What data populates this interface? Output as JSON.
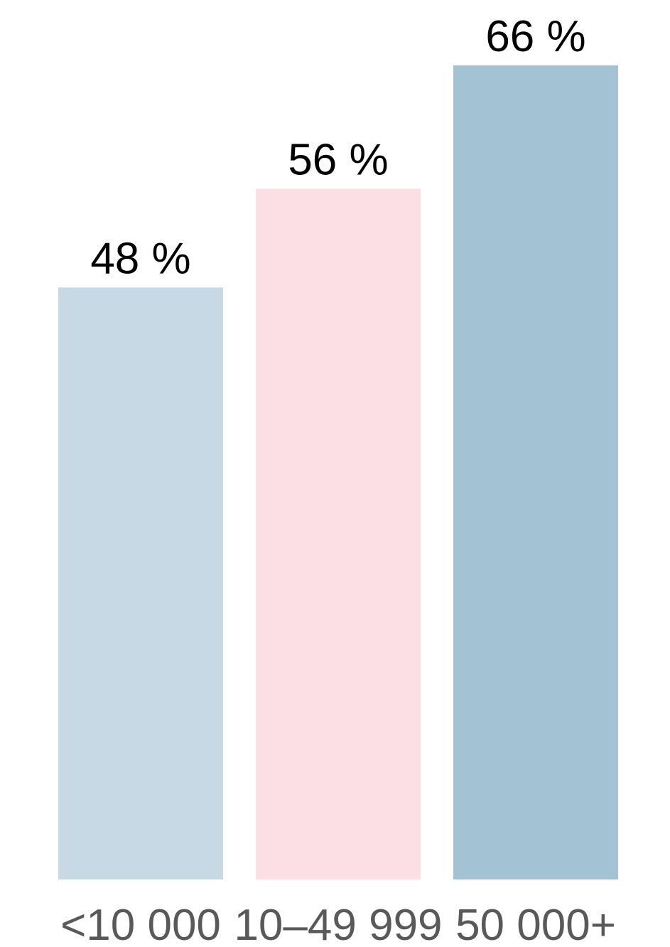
{
  "chart_data": {
    "type": "bar",
    "categories": [
      "<10 000",
      "10–49 999",
      "50 000+"
    ],
    "values": [
      48,
      56,
      66
    ],
    "value_labels": [
      "48 %",
      "56 %",
      "66 %"
    ],
    "bar_colors": [
      "#c7d9e4",
      "#fbdfe5",
      "#a3c2d3"
    ],
    "title": "",
    "xlabel": "",
    "ylabel": "",
    "ylim": [
      0,
      66
    ],
    "grid": false,
    "legend": "none"
  }
}
